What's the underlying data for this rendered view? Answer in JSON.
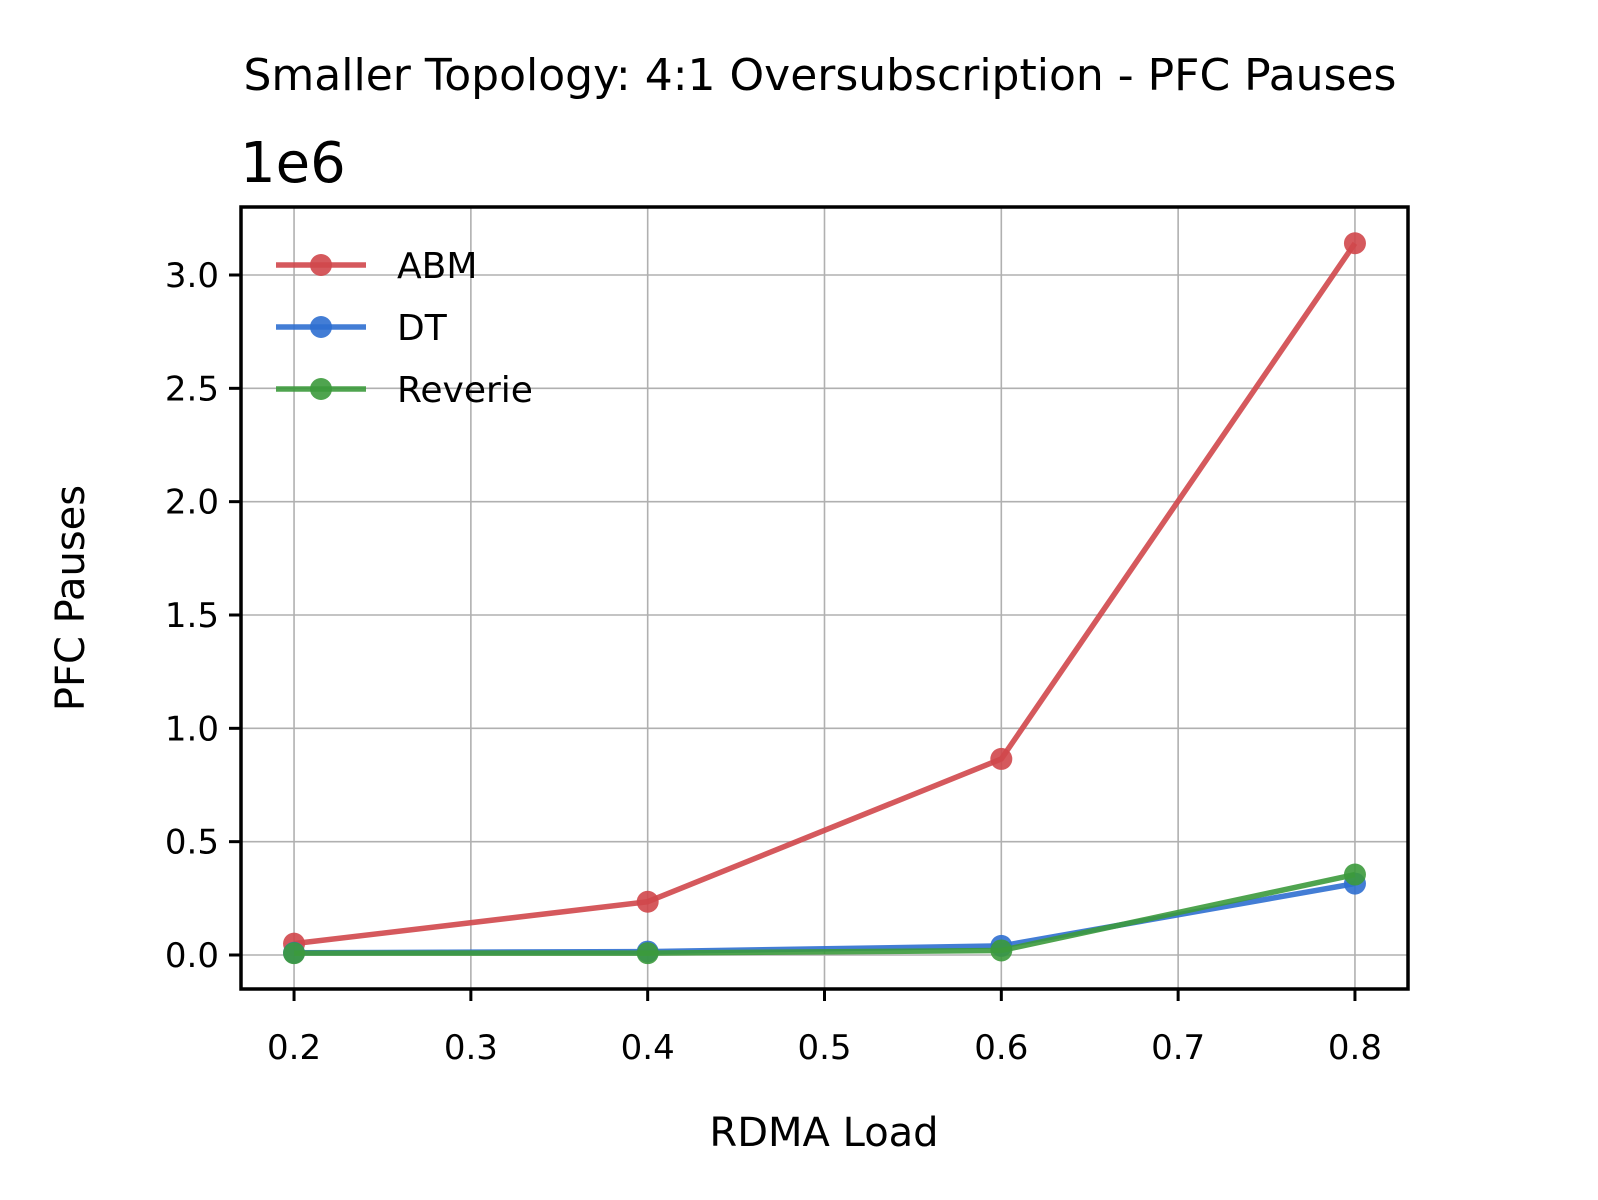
{
  "chart_data": {
    "type": "line",
    "title": "Smaller Topology: 4:1 Oversubscription - PFC Pauses",
    "xlabel": "RDMA Load",
    "ylabel": "PFC Pauses",
    "offset_text": "1e6",
    "x": [
      0.2,
      0.4,
      0.6,
      0.8
    ],
    "xlim": [
      0.17,
      0.83
    ],
    "ylim": [
      -150000,
      3300000
    ],
    "xticks": [
      0.2,
      0.3,
      0.4,
      0.5,
      0.6,
      0.7,
      0.8
    ],
    "xtick_labels": [
      "0.2",
      "0.3",
      "0.4",
      "0.5",
      "0.6",
      "0.7",
      "0.8"
    ],
    "yticks": [
      0,
      500000,
      1000000,
      1500000,
      2000000,
      2500000,
      3000000
    ],
    "ytick_labels": [
      "0.0",
      "0.5",
      "1.0",
      "1.5",
      "2.0",
      "2.5",
      "3.0"
    ],
    "grid": true,
    "legend_position": "top-left",
    "series": [
      {
        "name": "ABM",
        "color": "#d0474b",
        "values": [
          50000,
          235000,
          865000,
          3140000
        ]
      },
      {
        "name": "DT",
        "color": "#2f6fd0",
        "values": [
          10000,
          15000,
          40000,
          315000
        ]
      },
      {
        "name": "Reverie",
        "color": "#3c9a3c",
        "values": [
          8000,
          8000,
          20000,
          355000
        ]
      }
    ]
  }
}
